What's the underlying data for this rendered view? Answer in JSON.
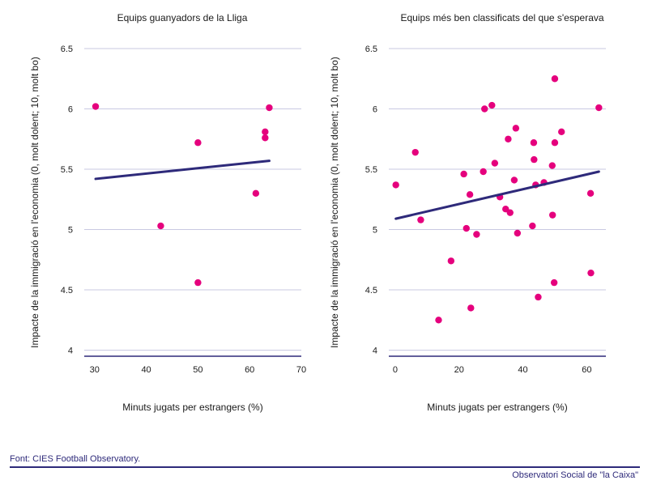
{
  "chart_data": [
    {
      "type": "scatter",
      "title": "Equips guanyadors de la Lliga",
      "xlabel": "Minuts jugats per estrangers (%)",
      "ylabel": "Impacte de la immigració en l'economia (0, molt dolent; 10, molt bo)",
      "xlim": [
        28,
        70
      ],
      "ylim": [
        3.95,
        6.5
      ],
      "xticks": [
        30,
        40,
        50,
        60,
        70
      ],
      "yticks": [
        4,
        4.5,
        5,
        5.5,
        6,
        6.5
      ],
      "ytick_labels": [
        "4",
        "4.5",
        "5",
        "5.5",
        "6",
        "6.5"
      ],
      "grid": "horizontal",
      "points": [
        {
          "x": 30.2,
          "y": 6.02
        },
        {
          "x": 42.8,
          "y": 5.03
        },
        {
          "x": 50.0,
          "y": 5.72
        },
        {
          "x": 50.0,
          "y": 4.56
        },
        {
          "x": 61.2,
          "y": 5.3
        },
        {
          "x": 63.0,
          "y": 5.81
        },
        {
          "x": 63.0,
          "y": 5.76
        },
        {
          "x": 63.8,
          "y": 6.01
        }
      ],
      "trendline": {
        "x": [
          30.2,
          63.8
        ],
        "y": [
          5.42,
          5.57
        ]
      }
    },
    {
      "type": "scatter",
      "title": "Equips més ben classificats del que s'esperava",
      "xlabel": "Minuts jugats per estrangers (%)",
      "ylabel": "Impacte de la immigració en l'economia (0, molt dolent; 10, molt bo)",
      "xlim": [
        -2,
        66
      ],
      "ylim": [
        3.95,
        6.5
      ],
      "xticks": [
        0,
        20,
        40,
        60
      ],
      "yticks": [
        4,
        4.5,
        5,
        5.5,
        6,
        6.5
      ],
      "ytick_labels": [
        "4",
        "4.5",
        "5",
        "5.5",
        "6",
        "6.5"
      ],
      "grid": "horizontal",
      "points": [
        {
          "x": 0.2,
          "y": 5.37
        },
        {
          "x": 6.3,
          "y": 5.64
        },
        {
          "x": 8.0,
          "y": 5.08
        },
        {
          "x": 13.6,
          "y": 4.25
        },
        {
          "x": 17.5,
          "y": 4.74
        },
        {
          "x": 21.5,
          "y": 5.46
        },
        {
          "x": 22.3,
          "y": 5.01
        },
        {
          "x": 23.4,
          "y": 5.29
        },
        {
          "x": 23.7,
          "y": 4.35
        },
        {
          "x": 25.5,
          "y": 4.96
        },
        {
          "x": 27.6,
          "y": 5.48
        },
        {
          "x": 28.0,
          "y": 6.0
        },
        {
          "x": 30.3,
          "y": 6.03
        },
        {
          "x": 31.2,
          "y": 5.55
        },
        {
          "x": 32.8,
          "y": 5.27
        },
        {
          "x": 34.6,
          "y": 5.17
        },
        {
          "x": 35.4,
          "y": 5.75
        },
        {
          "x": 36.0,
          "y": 5.14
        },
        {
          "x": 37.3,
          "y": 5.41
        },
        {
          "x": 37.8,
          "y": 5.84
        },
        {
          "x": 38.3,
          "y": 4.97
        },
        {
          "x": 43.0,
          "y": 5.03
        },
        {
          "x": 43.4,
          "y": 5.72
        },
        {
          "x": 43.5,
          "y": 5.58
        },
        {
          "x": 44.0,
          "y": 5.37
        },
        {
          "x": 44.8,
          "y": 4.44
        },
        {
          "x": 46.6,
          "y": 5.39
        },
        {
          "x": 49.2,
          "y": 5.53
        },
        {
          "x": 49.3,
          "y": 5.12
        },
        {
          "x": 50.0,
          "y": 6.25
        },
        {
          "x": 50.0,
          "y": 5.72
        },
        {
          "x": 49.8,
          "y": 4.56
        },
        {
          "x": 52.1,
          "y": 5.81
        },
        {
          "x": 61.2,
          "y": 5.3
        },
        {
          "x": 61.3,
          "y": 4.64
        },
        {
          "x": 63.8,
          "y": 6.01
        }
      ],
      "trendline": {
        "x": [
          0.2,
          63.8
        ],
        "y": [
          5.09,
          5.48
        ]
      }
    }
  ],
  "colors": {
    "point": "#e5007d",
    "trendline": "#2e2a7a",
    "axis": "#2e2a7a",
    "grid": "#c9c9e2"
  },
  "footer": {
    "source": "Font: CIES Football Observatory.",
    "brand": "Observatori Social de \"la Caixa\""
  }
}
